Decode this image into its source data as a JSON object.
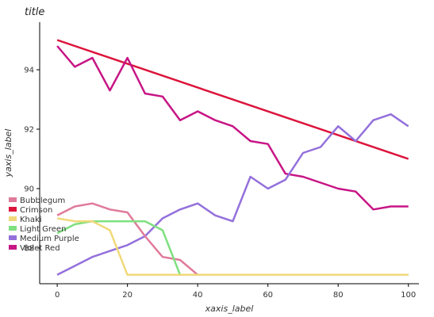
{
  "chart_data": {
    "type": "line",
    "title": "title",
    "xlabel": "xaxis_label",
    "ylabel": "yaxis_label",
    "xlim": [
      -5,
      103
    ],
    "ylim": [
      86.8,
      95.6
    ],
    "xticks": [
      0,
      20,
      40,
      60,
      80,
      100
    ],
    "yticks": [
      88,
      90,
      92,
      94
    ],
    "grid": false,
    "legend_position": "left",
    "series": [
      {
        "name": "Crimson",
        "color": "#DC143C",
        "x": [
          0,
          100
        ],
        "y": [
          95.0,
          91.0
        ]
      },
      {
        "name": "Violet Red",
        "color": "#C71585",
        "x": [
          0,
          5,
          10,
          15,
          20,
          25,
          30,
          35,
          40,
          45,
          50,
          55,
          60,
          65,
          70,
          75,
          80,
          85,
          90,
          95,
          100
        ],
        "y": [
          94.8,
          94.1,
          94.4,
          93.3,
          94.4,
          93.2,
          93.1,
          92.3,
          92.6,
          92.3,
          92.1,
          91.6,
          91.5,
          90.5,
          90.4,
          90.2,
          90.0,
          89.9,
          89.3,
          89.4,
          89.4
        ]
      },
      {
        "name": "Medium Purple",
        "color": "#9370DB",
        "x": [
          0,
          5,
          10,
          15,
          20,
          25,
          30,
          35,
          40,
          45,
          50,
          55,
          60,
          65,
          70,
          75,
          80,
          85,
          90,
          95,
          100
        ],
        "y": [
          87.1,
          87.4,
          87.7,
          87.9,
          88.1,
          88.4,
          89.0,
          89.3,
          89.5,
          89.1,
          88.9,
          90.4,
          90.0,
          90.3,
          91.2,
          91.4,
          92.1,
          91.6,
          92.3,
          92.5,
          92.1
        ]
      },
      {
        "name": "Bubblegum",
        "color": "#E07A9A",
        "x": [
          0,
          5,
          10,
          15,
          20,
          25,
          30,
          35,
          40,
          100
        ],
        "y": [
          89.1,
          89.4,
          89.5,
          89.3,
          89.2,
          88.4,
          87.7,
          87.6,
          87.1,
          87.1
        ]
      },
      {
        "name": "Light Green",
        "color": "#7FE07F",
        "x": [
          0,
          5,
          10,
          15,
          20,
          25,
          30,
          35,
          40,
          100
        ],
        "y": [
          88.5,
          88.8,
          88.9,
          88.9,
          88.9,
          88.9,
          88.6,
          87.1,
          87.1,
          87.1
        ]
      },
      {
        "name": "Khaki",
        "color": "#F0D97A",
        "x": [
          0,
          5,
          10,
          15,
          20,
          25,
          100
        ],
        "y": [
          89.0,
          88.9,
          88.9,
          88.6,
          87.1,
          87.1,
          87.1
        ]
      }
    ]
  }
}
